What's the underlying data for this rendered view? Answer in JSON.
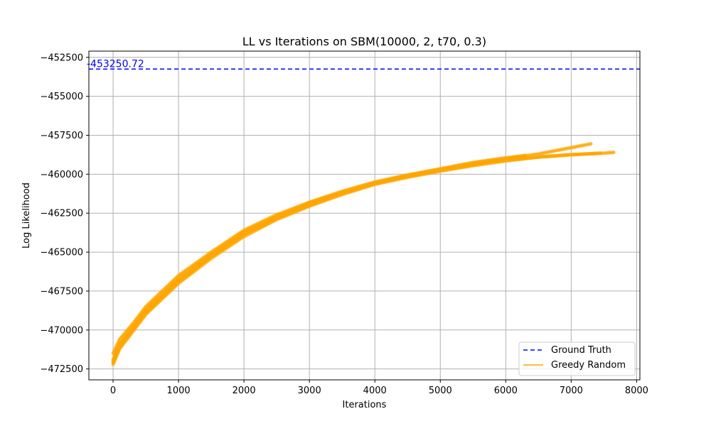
{
  "chart_data": {
    "type": "line",
    "title": "LL vs Iterations on SBM(10000, 2, t70, 0.3)",
    "xlabel": "Iterations",
    "ylabel": "Log Likelihood",
    "xlim": [
      -370,
      8050
    ],
    "ylim": [
      -473200,
      -452100
    ],
    "x_ticks": [
      0,
      1000,
      2000,
      3000,
      4000,
      5000,
      6000,
      7000,
      8000
    ],
    "y_ticks": [
      -472500,
      -470000,
      -467500,
      -465000,
      -462500,
      -460000,
      -457500,
      -455000,
      -452500
    ],
    "x_tick_labels": [
      "0",
      "1000",
      "2000",
      "3000",
      "4000",
      "5000",
      "6000",
      "7000",
      "8000"
    ],
    "y_tick_labels": [
      "−472500",
      "−470000",
      "−467500",
      "−465000",
      "−462500",
      "−460000",
      "−457500",
      "−455000",
      "−452500"
    ],
    "grid": true,
    "legend_position": "lower-right",
    "colors": {
      "ground_truth": "#0000ff",
      "greedy_random": "#ffa500"
    },
    "ground_truth": {
      "name": "Ground Truth",
      "value": -453250.72,
      "label": "-453250.72",
      "style": "dashed"
    },
    "greedy_random": {
      "name": "Greedy Random",
      "series": [
        {
          "x": [
            0,
            100,
            300,
            500,
            800,
            1000,
            1500,
            2000,
            2500,
            3000,
            3500,
            4000,
            4500,
            5000,
            5500,
            6000,
            6500,
            7000,
            7300
          ],
          "y": [
            -472100,
            -471000,
            -469900,
            -468800,
            -467600,
            -466800,
            -465200,
            -463800,
            -462800,
            -461900,
            -461200,
            -460600,
            -460100,
            -459700,
            -459300,
            -459000,
            -458700,
            -458300,
            -458050
          ]
        },
        {
          "x": [
            0,
            100,
            300,
            500,
            800,
            1000,
            1500,
            2000,
            2500,
            3000,
            3500,
            4000,
            4500,
            5000,
            5500,
            6000,
            6500,
            7000,
            7500,
            7650
          ],
          "y": [
            -472200,
            -471200,
            -470100,
            -469000,
            -467800,
            -467000,
            -465400,
            -464000,
            -462900,
            -462050,
            -461300,
            -460650,
            -460200,
            -459800,
            -459450,
            -459150,
            -458900,
            -458750,
            -458650,
            -458600
          ]
        },
        {
          "x": [
            0,
            100,
            300,
            500,
            800,
            1000,
            1500,
            2000,
            2500,
            3000,
            3500,
            4000,
            4500,
            5000,
            5500,
            6000,
            6300
          ],
          "y": [
            -471500,
            -470600,
            -469600,
            -468500,
            -467300,
            -466500,
            -465000,
            -463600,
            -462600,
            -461800,
            -461100,
            -460500,
            -460050,
            -459650,
            -459250,
            -458950,
            -458800
          ]
        },
        {
          "x": [
            0,
            100,
            300,
            500,
            800,
            1000,
            1500,
            2000,
            2500,
            3000,
            3500,
            4000,
            4500,
            5000,
            5500,
            6000,
            6500,
            7000,
            7450
          ],
          "y": [
            -471900,
            -470900,
            -469800,
            -468700,
            -467500,
            -466700,
            -465100,
            -463700,
            -462700,
            -461850,
            -461150,
            -460550,
            -460100,
            -459700,
            -459350,
            -459100,
            -458900,
            -458750,
            -458650
          ]
        },
        {
          "x": [
            0,
            100,
            300,
            500,
            800,
            1000,
            1500,
            2000,
            2500,
            3000,
            3500,
            4000,
            4500,
            5000,
            5500,
            6000,
            6200
          ],
          "y": [
            -472000,
            -471100,
            -470000,
            -468900,
            -467700,
            -466900,
            -465300,
            -463900,
            -462850,
            -462000,
            -461250,
            -460600,
            -460150,
            -459750,
            -459400,
            -459050,
            -458950
          ]
        }
      ]
    }
  }
}
